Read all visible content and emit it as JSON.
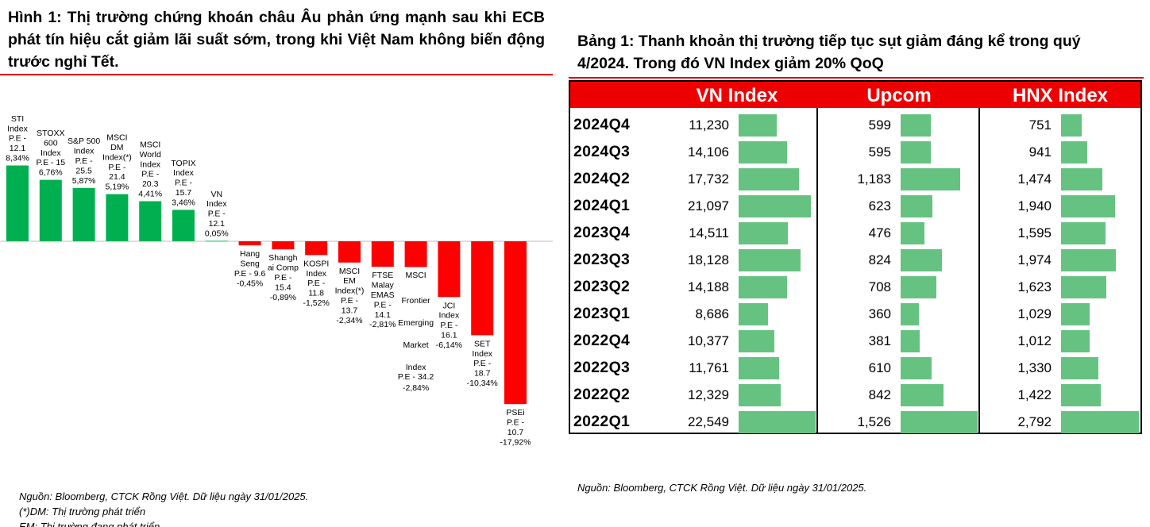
{
  "figure": {
    "title": "Hình 1: Thị trường chứng khoán châu Âu phản ứng mạnh sau khi ECB phát tín hiệu cắt giảm lãi suất sớm, trong khi Việt Nam không biến động trước nghỉ Tết.",
    "source_lines": [
      "Nguồn: Bloomberg, CTCK Rồng Việt. Dữ liệu ngày 31/01/2025.",
      "(*)DM: Thị trường phát triển",
      "EM: Thị trường đang phát triển"
    ]
  },
  "table_block": {
    "title": "Bảng 1: Thanh khoản thị trường tiếp tục sụt giảm đáng kể trong quý 4/2024. Trong đó VN Index giảm 20% QoQ",
    "source": "Nguồn: Bloomberg, CTCK Rồng Việt. Dữ liệu ngày 31/01/2025."
  },
  "chart_data": [
    {
      "type": "bar",
      "categories": [
        [
          "STI",
          "Index",
          "P.E -",
          "12.1"
        ],
        [
          "STOXX",
          "600",
          "Index",
          "P.E - 15"
        ],
        [
          "S&P 500",
          "Index",
          "P.E -",
          "25.5"
        ],
        [
          "MSCI",
          "DM",
          "Index(*)",
          "P.E -",
          "21.4"
        ],
        [
          "MSCI",
          "World",
          "Index",
          "P.E -",
          "20.3"
        ],
        [
          "TOPIX",
          "Index",
          "P.E -",
          "15.7"
        ],
        [
          "VN",
          "Index",
          "P.E -",
          "12.1"
        ],
        [
          "Hang",
          "Seng",
          "P.E - 9.6"
        ],
        [
          "Shangh",
          "ai Comp",
          "P.E -",
          "15.4"
        ],
        [
          "KOSPI",
          "Index",
          "P.E -",
          "11.8"
        ],
        [
          "MSCI",
          "EM",
          "Index(*)",
          "P.E -",
          "13.7"
        ],
        [
          "FTSE",
          "Malay",
          "EMAS",
          "P.E -",
          "14.1"
        ],
        [
          "MSCI",
          "Frontier",
          "Emerging",
          "Market",
          "Index",
          "P.E - 34.2"
        ],
        [
          "JCI",
          "Index",
          "P.E -",
          "16.1"
        ],
        [
          "SET",
          "Index",
          "P.E -",
          "18.7"
        ],
        [
          "PSEi",
          "P.E -",
          "10.7"
        ]
      ],
      "values": [
        8.34,
        6.76,
        5.87,
        5.19,
        4.41,
        3.46,
        0.05,
        -0.45,
        -0.89,
        -1.52,
        -2.34,
        -2.81,
        -2.84,
        -6.14,
        -10.34,
        -17.92
      ],
      "value_labels": [
        "8,34%",
        "6,76%",
        "5,87%",
        "5,19%",
        "4,41%",
        "3,46%",
        "0,05%",
        "-0,45%",
        "-0,89%",
        "-1,52%",
        "-2,34%",
        "-2,81%",
        "-2,84%",
        "-6,14%",
        "-10,34%",
        "-17,92%"
      ],
      "colors": {
        "positive": "#00b050",
        "negative": "#ff0000"
      }
    },
    {
      "type": "table",
      "columns": [
        "VN Index",
        "Upcom",
        "HNX Index"
      ],
      "rows": [
        {
          "period": "2024Q4",
          "vn": 11230,
          "upcom": 599,
          "hnx": 751,
          "vn_label": "11,230",
          "upcom_label": "599",
          "hnx_label": "751"
        },
        {
          "period": "2024Q3",
          "vn": 14106,
          "upcom": 595,
          "hnx": 941,
          "vn_label": "14,106",
          "upcom_label": "595",
          "hnx_label": "941"
        },
        {
          "period": "2024Q2",
          "vn": 17732,
          "upcom": 1183,
          "hnx": 1474,
          "vn_label": "17,732",
          "upcom_label": "1,183",
          "hnx_label": "1,474"
        },
        {
          "period": "2024Q1",
          "vn": 21097,
          "upcom": 623,
          "hnx": 1940,
          "vn_label": "21,097",
          "upcom_label": "623",
          "hnx_label": "1,940"
        },
        {
          "period": "2023Q4",
          "vn": 14511,
          "upcom": 476,
          "hnx": 1595,
          "vn_label": "14,511",
          "upcom_label": "476",
          "hnx_label": "1,595"
        },
        {
          "period": "2023Q3",
          "vn": 18128,
          "upcom": 824,
          "hnx": 1974,
          "vn_label": "18,128",
          "upcom_label": "824",
          "hnx_label": "1,974"
        },
        {
          "period": "2023Q2",
          "vn": 14188,
          "upcom": 708,
          "hnx": 1623,
          "vn_label": "14,188",
          "upcom_label": "708",
          "hnx_label": "1,623"
        },
        {
          "period": "2023Q1",
          "vn": 8686,
          "upcom": 360,
          "hnx": 1029,
          "vn_label": "8,686",
          "upcom_label": "360",
          "hnx_label": "1,029"
        },
        {
          "period": "2022Q4",
          "vn": 10377,
          "upcom": 381,
          "hnx": 1012,
          "vn_label": "10,377",
          "upcom_label": "381",
          "hnx_label": "1,012"
        },
        {
          "period": "2022Q3",
          "vn": 11761,
          "upcom": 610,
          "hnx": 1330,
          "vn_label": "11,761",
          "upcom_label": "610",
          "hnx_label": "1,330"
        },
        {
          "period": "2022Q2",
          "vn": 12329,
          "upcom": 842,
          "hnx": 1422,
          "vn_label": "12,329",
          "upcom_label": "842",
          "hnx_label": "1,422"
        },
        {
          "period": "2022Q1",
          "vn": 22549,
          "upcom": 1526,
          "hnx": 2792,
          "vn_label": "22,549",
          "upcom_label": "1,526",
          "hnx_label": "2,792"
        }
      ],
      "colors": {
        "header": "#ee0000",
        "bar": "#66c281"
      }
    }
  ]
}
